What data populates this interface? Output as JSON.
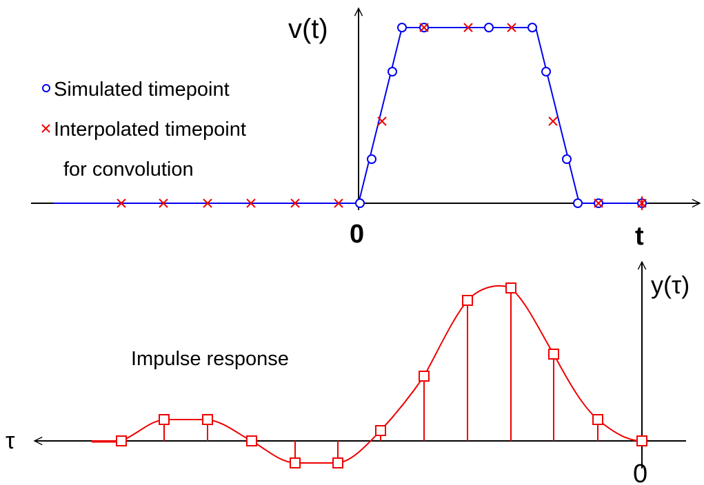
{
  "top": {
    "y_label": "v(t)",
    "x_label": "t",
    "origin_label": "0",
    "legend": {
      "simulated": "Simulated timepoint",
      "interpolated_line1": "Interpolated timepoint",
      "interpolated_line2": "for convolution"
    },
    "colors": {
      "signal": "#0000ee",
      "interp": "#ee0000",
      "axis": "#000000"
    }
  },
  "bottom": {
    "title": "Impulse response",
    "y_label": "y(τ)",
    "x_label": "τ",
    "origin_label": "0",
    "colors": {
      "signal": "#ee0000",
      "axis": "#000000"
    }
  }
}
